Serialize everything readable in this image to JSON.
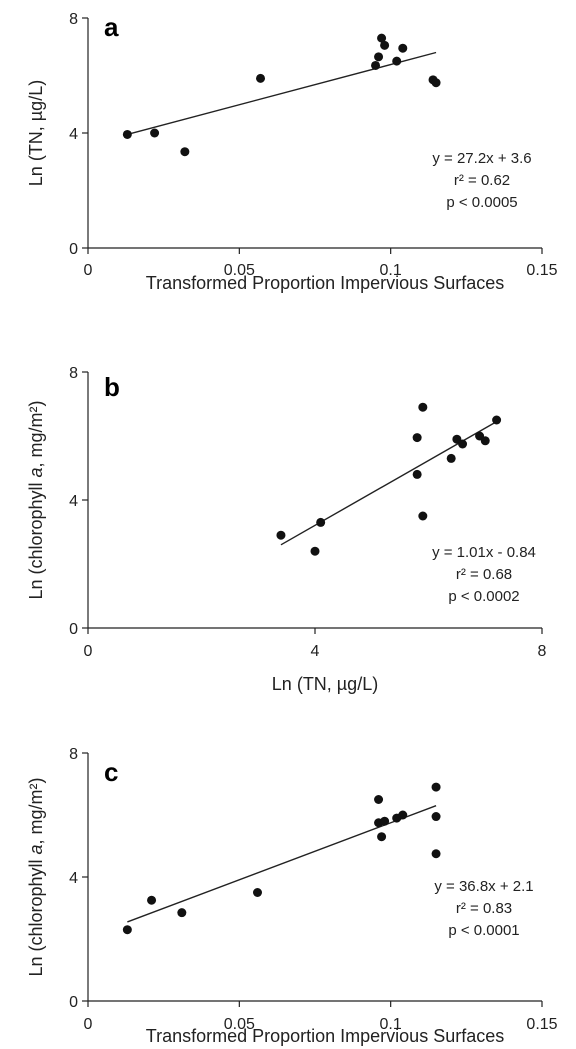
{
  "chart_data": [
    {
      "type": "scatter",
      "panel_label": "a",
      "xlabel": "Transformed Proportion Impervious Surfaces",
      "ylabel": "Ln (TN, µg/L)",
      "xlim": [
        0,
        0.15
      ],
      "ylim": [
        0,
        8
      ],
      "xticks": [
        "0",
        "0.05",
        "0.1",
        "0.15"
      ],
      "yticks": [
        "0",
        "4",
        "8"
      ],
      "x": [
        0.013,
        0.022,
        0.032,
        0.057,
        0.095,
        0.096,
        0.097,
        0.098,
        0.102,
        0.104,
        0.114,
        0.115
      ],
      "y": [
        3.95,
        4.0,
        3.35,
        5.9,
        6.35,
        6.65,
        7.3,
        7.05,
        6.5,
        6.95,
        5.85,
        5.75
      ],
      "fit_line": {
        "x": [
          0.013,
          0.115
        ],
        "y": [
          3.95,
          6.8
        ]
      },
      "annotations": [
        "y = 27.2x + 3.6",
        "r² = 0.62",
        "p < 0.0005"
      ],
      "grid": false
    },
    {
      "type": "scatter",
      "panel_label": "b",
      "xlabel": "Ln (TN, µg/L)",
      "ylabel": "Ln (chlorophyll a, mg/m²)",
      "xlim": [
        0,
        8
      ],
      "ylim": [
        0,
        8
      ],
      "xticks": [
        "0",
        "4",
        "8"
      ],
      "yticks": [
        "0",
        "4",
        "8"
      ],
      "x": [
        3.4,
        4.0,
        4.1,
        5.8,
        5.8,
        5.9,
        5.9,
        6.4,
        6.5,
        6.6,
        6.9,
        7.0,
        7.2
      ],
      "y": [
        2.9,
        2.4,
        3.3,
        5.95,
        4.8,
        6.9,
        3.5,
        5.3,
        5.9,
        5.75,
        6.0,
        5.85,
        6.5
      ],
      "fit_line": {
        "x": [
          3.4,
          7.2
        ],
        "y": [
          2.6,
          6.45
        ]
      },
      "annotations": [
        "y = 1.01x - 0.84",
        "r² = 0.68",
        "p < 0.0002"
      ],
      "grid": false
    },
    {
      "type": "scatter",
      "panel_label": "c",
      "xlabel": "Transformed Proportion Impervious Surfaces",
      "ylabel": "Ln (chlorophyll a, mg/m²)",
      "xlim": [
        0,
        0.15
      ],
      "ylim": [
        0,
        8
      ],
      "xticks": [
        "0",
        "0.05",
        "0.1",
        "0.15"
      ],
      "yticks": [
        "0",
        "4",
        "8"
      ],
      "x": [
        0.013,
        0.021,
        0.031,
        0.056,
        0.096,
        0.096,
        0.097,
        0.098,
        0.102,
        0.104,
        0.115,
        0.115,
        0.115
      ],
      "y": [
        2.3,
        3.25,
        2.85,
        3.5,
        6.5,
        5.75,
        5.3,
        5.8,
        5.9,
        6.0,
        6.9,
        5.95,
        4.75
      ],
      "fit_line": {
        "x": [
          0.013,
          0.115
        ],
        "y": [
          2.55,
          6.3
        ]
      },
      "annotations": [
        "y = 36.8x + 2.1",
        "r² = 0.83",
        "p < 0.0001"
      ],
      "grid": false
    }
  ]
}
